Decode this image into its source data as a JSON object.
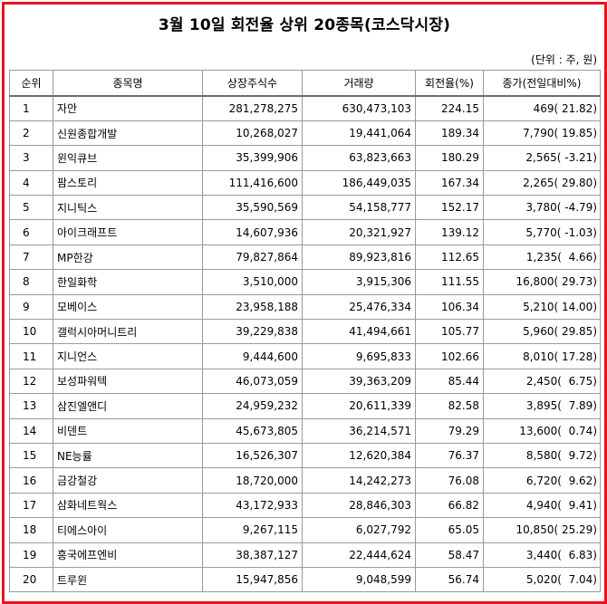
{
  "title": "3월 10일 회전율 상위 20종목(코스닥시장)",
  "unit_note": "(단위 : 주, 원)",
  "columns": [
    "순위",
    "종목명",
    "상장주식수",
    "거래량",
    "회전율(%)",
    "종가(전일대비%)"
  ],
  "rows": [
    {
      "rank": "1",
      "name": "자안",
      "listed": "281,278,275",
      "volume": "630,473,103",
      "turnover": "224.15",
      "price": "469( 21.82)"
    },
    {
      "rank": "2",
      "name": "신원종합개발",
      "listed": "10,268,027",
      "volume": "19,441,064",
      "turnover": "189.34",
      "price": "7,790( 19.85)"
    },
    {
      "rank": "3",
      "name": "윈익큐브",
      "listed": "35,399,906",
      "volume": "63,823,663",
      "turnover": "180.29",
      "price": "2,565( -3.21)"
    },
    {
      "rank": "4",
      "name": "팜스토리",
      "listed": "111,416,600",
      "volume": "186,449,035",
      "turnover": "167.34",
      "price": "2,265( 29.80)"
    },
    {
      "rank": "5",
      "name": "지니틱스",
      "listed": "35,590,569",
      "volume": "54,158,777",
      "turnover": "152.17",
      "price": "3,780( -4.79)"
    },
    {
      "rank": "6",
      "name": "아이크래프트",
      "listed": "14,607,936",
      "volume": "20,321,927",
      "turnover": "139.12",
      "price": "5,770( -1.03)"
    },
    {
      "rank": "7",
      "name": "MP한강",
      "listed": "79,827,864",
      "volume": "89,923,816",
      "turnover": "112.65",
      "price": "1,235(  4.66)"
    },
    {
      "rank": "8",
      "name": "한일화학",
      "listed": "3,510,000",
      "volume": "3,915,306",
      "turnover": "111.55",
      "price": "16,800( 29.73)"
    },
    {
      "rank": "9",
      "name": "모베이스",
      "listed": "23,958,188",
      "volume": "25,476,334",
      "turnover": "106.34",
      "price": "5,210( 14.00)"
    },
    {
      "rank": "10",
      "name": "갤럭시아머니트리",
      "listed": "39,229,838",
      "volume": "41,494,661",
      "turnover": "105.77",
      "price": "5,960( 29.85)"
    },
    {
      "rank": "11",
      "name": "지니언스",
      "listed": "9,444,600",
      "volume": "9,695,833",
      "turnover": "102.66",
      "price": "8,010( 17.28)"
    },
    {
      "rank": "12",
      "name": "보성파워텍",
      "listed": "46,073,059",
      "volume": "39,363,209",
      "turnover": "85.44",
      "price": "2,450(  6.75)"
    },
    {
      "rank": "13",
      "name": "삼진엘앤디",
      "listed": "24,959,232",
      "volume": "20,611,339",
      "turnover": "82.58",
      "price": "3,895(  7.89)"
    },
    {
      "rank": "14",
      "name": "비덴트",
      "listed": "45,673,805",
      "volume": "36,214,571",
      "turnover": "79.29",
      "price": "13,600(  0.74)"
    },
    {
      "rank": "15",
      "name": "NE능률",
      "listed": "16,526,307",
      "volume": "12,620,384",
      "turnover": "76.37",
      "price": "8,580(  9.72)"
    },
    {
      "rank": "16",
      "name": "금강철강",
      "listed": "18,720,000",
      "volume": "14,242,273",
      "turnover": "76.08",
      "price": "6,720(  9.62)"
    },
    {
      "rank": "17",
      "name": "삼화네트웍스",
      "listed": "43,172,933",
      "volume": "28,846,303",
      "turnover": "66.82",
      "price": "4,940(  9.41)"
    },
    {
      "rank": "18",
      "name": "티에스아이",
      "listed": "9,267,115",
      "volume": "6,027,792",
      "turnover": "65.05",
      "price": "10,850( 25.29)"
    },
    {
      "rank": "19",
      "name": "흥국에프엔비",
      "listed": "38,387,127",
      "volume": "22,444,624",
      "turnover": "58.47",
      "price": "3,440(  6.83)"
    },
    {
      "rank": "20",
      "name": "트루윈",
      "listed": "15,947,856",
      "volume": "9,048,599",
      "turnover": "56.74",
      "price": "5,020(  7.04)"
    }
  ],
  "colors": {
    "frame": "#e8141c",
    "grid": "#9a9a9a"
  }
}
